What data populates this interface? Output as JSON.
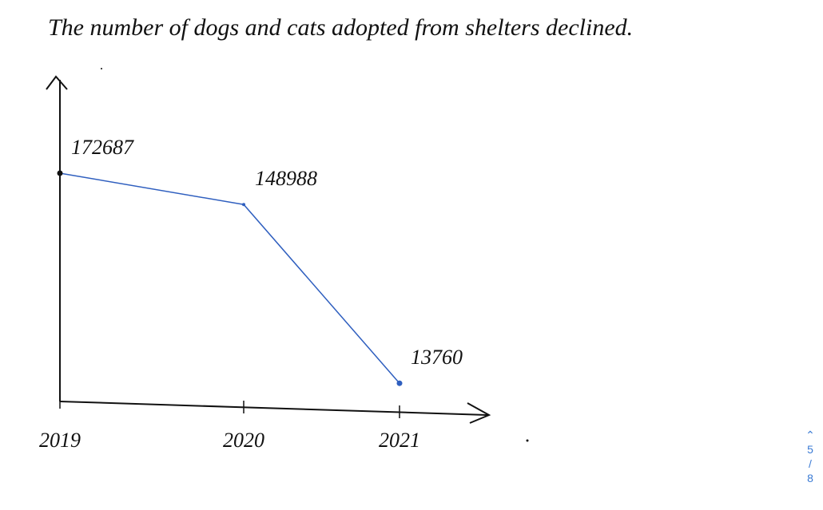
{
  "chart_data": {
    "type": "line",
    "title": "The number of dogs and cats adopted from shelters declined.",
    "categories": [
      "2019",
      "2020",
      "2021"
    ],
    "values": [
      172687,
      148988,
      13760
    ],
    "color": "#2f5fbf"
  },
  "pager": {
    "current": "5",
    "separator": "/",
    "total": "8"
  }
}
